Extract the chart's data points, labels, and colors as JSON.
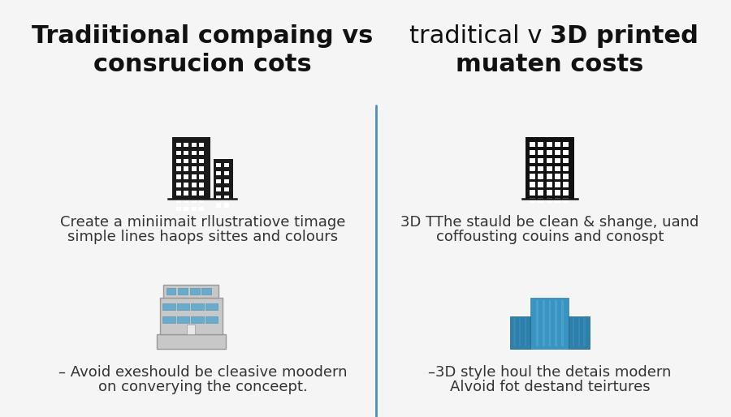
{
  "bg_color": "#f5f5f5",
  "divider_color": "#4a90b8",
  "left_title_line1": "Tradiitional compaing vs",
  "left_title_line2": "consrucion cots",
  "right_title_line1": "traditical v 3D printed",
  "right_title_line2": "muaten costs",
  "right_title_prefix": "traditical v ",
  "right_title_bold": "3D printed",
  "left_text1_line1": "Create a miniimait rllustratiove timage",
  "left_text1_line2": "simple lines haops sittes and colours",
  "left_text2_line1": "– Avoid exeshould be cleasive moodern",
  "left_text2_line2": "on converying the conceept.",
  "right_text1_line1": "3D TThe stauld be clean & shange, uand",
  "right_text1_line2": "coffousting couins and conospt",
  "right_text2_line1": "–3D style houl the detais modern",
  "right_text2_line2": "Alvoid fot destand teirtures",
  "title_fontsize": 22,
  "body_fontsize": 13
}
